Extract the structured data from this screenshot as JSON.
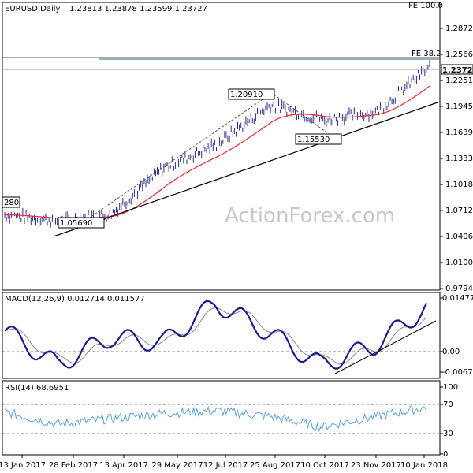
{
  "header": {
    "title": "EURUSD,Daily",
    "ohlc": "1.23813 1.23878 1.23599 1.23727"
  },
  "watermark": "ActionForex.com",
  "price_panel": {
    "ticks": [
      "1.28720",
      "1.25660",
      "1.22510",
      "1.19450",
      "1.16390",
      "1.13330",
      "1.10180",
      "1.07120",
      "1.04060",
      "1.01000",
      "0.97940"
    ],
    "last_price": "1.23727",
    "fe_label_top": "FE 100.0",
    "fe_label_mid": "FE 38.2",
    "annotations": [
      "1.20910",
      "1.15530",
      "1.05690",
      "280"
    ]
  },
  "macd_panel": {
    "label": "MACD(12,26,9) 0.012714 0.011577",
    "ticks": [
      "0.014776",
      "0.00",
      "-0.006705"
    ]
  },
  "rsi_panel": {
    "label": "RSI(14) 68.6951",
    "ticks": [
      "100",
      "70",
      "30",
      "0"
    ]
  },
  "x_axis": {
    "labels": [
      "13 Jan 2017",
      "28 Feb 2017",
      "13 Apr 2017",
      "29 May 2017",
      "12 Jul 2017",
      "25 Aug 2017",
      "10 Oct 2017",
      "23 Nov 2017",
      "10 Jan 2018"
    ]
  },
  "colors": {
    "bars": "#2a2a88",
    "ma": "#e8262e",
    "macd": "#1b1b8a",
    "signal": "#888888",
    "rsi": "#5aa0d8",
    "trendline": "#000000",
    "fe_lines": "#3a5f6f"
  },
  "chart_data": [
    {
      "type": "line",
      "title": "EURUSD,Daily",
      "x": [
        "13 Jan 2017",
        "28 Feb 2017",
        "13 Apr 2017",
        "29 May 2017",
        "12 Jul 2017",
        "25 Aug 2017",
        "10 Oct 2017",
        "23 Nov 2017",
        "10 Jan 2018"
      ],
      "series": [
        {
          "values": [
            1.065,
            1.058,
            1.066,
            1.12,
            1.147,
            1.193,
            1.175,
            1.185,
            1.237
          ]
        }
      ],
      "ylim": [
        0.9794,
        1.3
      ],
      "annotations": [
        "1.20910",
        "1.15530",
        "1.05690",
        "280",
        "FE 100.0",
        "FE 38.2"
      ]
    },
    {
      "type": "line",
      "title": "MACD(12,26,9) 0.012714 0.011577",
      "x": [
        "13 Jan 2017",
        "28 Feb 2017",
        "13 Apr 2017",
        "29 May 2017",
        "12 Jul 2017",
        "25 Aug 2017",
        "10 Oct 2017",
        "23 Nov 2017",
        "10 Jan 2018"
      ],
      "series": [
        {
          "values": [
            0.006,
            -0.004,
            0.004,
            0.0025,
            0.014,
            0.0055,
            -0.004,
            0.0015,
            0.0127
          ]
        }
      ],
      "ylim": [
        -0.0075,
        0.0165
      ]
    },
    {
      "type": "line",
      "title": "RSI(14) 68.6951",
      "x": [
        "13 Jan 2017",
        "28 Feb 2017",
        "13 Apr 2017",
        "29 May 2017",
        "12 Jul 2017",
        "25 Aug 2017",
        "10 Oct 2017",
        "23 Nov 2017",
        "10 Jan 2018"
      ],
      "series": [
        {
          "values": [
            62,
            44,
            52,
            60,
            64,
            56,
            40,
            55,
            68.7
          ]
        }
      ],
      "ylim": [
        0,
        100
      ]
    }
  ]
}
